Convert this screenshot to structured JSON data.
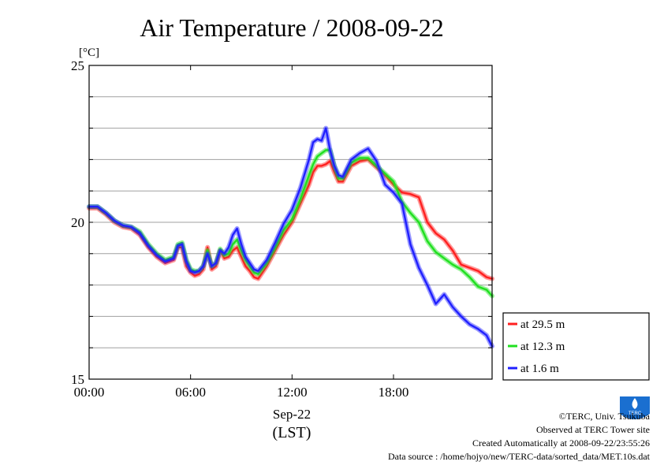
{
  "colors": {
    "red": "#ff2020",
    "green": "#20e020",
    "blue": "#2020ff"
  },
  "credits": {
    "copyright": "©TERC, Univ. Tsukuba",
    "site": "Observed at TERC Tower site",
    "created": "Created Automatically at 2008-09-22/23:55:26",
    "source": "Data source : /home/hojyo/new/TERC-data/sorted_data/MET.10s.dat",
    "logo_text": "TERC"
  },
  "chart_data": {
    "type": "line",
    "title": "Air Temperature / 2008-09-22",
    "ylabel": "[°C]",
    "xlabel_date": "Sep-22",
    "xlabel_tz": "(LST)",
    "ylim": [
      15,
      25
    ],
    "xlim": [
      0,
      23.83
    ],
    "x_ticks": [
      0,
      6,
      12,
      18
    ],
    "x_tick_labels": [
      "00:00",
      "06:00",
      "12:00",
      "18:00"
    ],
    "y_ticks": [
      15,
      20,
      25
    ],
    "y_tick_labels": [
      "15",
      "20",
      "25"
    ],
    "y_grid": [
      16,
      17,
      18,
      19,
      20,
      21,
      22,
      23,
      24
    ],
    "legend_position": "right",
    "x": [
      0,
      0.5,
      1,
      1.5,
      2,
      2.5,
      3,
      3.5,
      4,
      4.5,
      5,
      5.25,
      5.5,
      5.75,
      6,
      6.25,
      6.5,
      6.75,
      7,
      7.25,
      7.5,
      7.75,
      8,
      8.25,
      8.5,
      8.75,
      9,
      9.25,
      9.5,
      9.75,
      10,
      10.5,
      11,
      11.5,
      12,
      12.5,
      13,
      13.25,
      13.5,
      13.75,
      14,
      14.25,
      14.5,
      14.75,
      15,
      15.5,
      16,
      16.5,
      17,
      17.5,
      18,
      18.5,
      19,
      19.5,
      20,
      20.5,
      21,
      21.5,
      22,
      22.5,
      23,
      23.5,
      23.83
    ],
    "series": [
      {
        "name": "at 29.5 m",
        "color": "#ff2020",
        "values": [
          20.45,
          20.45,
          20.25,
          20.0,
          19.85,
          19.8,
          19.6,
          19.2,
          18.9,
          18.7,
          18.8,
          19.2,
          19.2,
          18.6,
          18.4,
          18.3,
          18.35,
          18.5,
          19.2,
          18.5,
          18.6,
          19.1,
          18.85,
          18.9,
          19.1,
          19.2,
          18.9,
          18.6,
          18.45,
          18.25,
          18.2,
          18.6,
          19.1,
          19.6,
          20.0,
          20.6,
          21.2,
          21.6,
          21.8,
          21.8,
          21.85,
          21.95,
          21.6,
          21.3,
          21.3,
          21.8,
          21.95,
          22.0,
          21.75,
          21.5,
          21.2,
          20.95,
          20.9,
          20.8,
          20.0,
          19.65,
          19.45,
          19.1,
          18.65,
          18.55,
          18.45,
          18.25,
          18.2
        ]
      },
      {
        "name": "at 12.3 m",
        "color": "#20e020",
        "values": [
          20.5,
          20.5,
          20.3,
          20.05,
          19.9,
          19.85,
          19.7,
          19.3,
          19.0,
          18.8,
          18.9,
          19.3,
          19.35,
          18.8,
          18.5,
          18.45,
          18.45,
          18.6,
          19.1,
          18.6,
          18.7,
          19.15,
          18.95,
          19.0,
          19.3,
          19.45,
          19.1,
          18.8,
          18.6,
          18.4,
          18.35,
          18.7,
          19.2,
          19.75,
          20.1,
          20.75,
          21.5,
          21.85,
          22.1,
          22.2,
          22.3,
          22.3,
          21.8,
          21.4,
          21.4,
          21.9,
          22.05,
          22.05,
          21.8,
          21.55,
          21.3,
          20.65,
          20.3,
          20.0,
          19.4,
          19.05,
          18.85,
          18.65,
          18.5,
          18.25,
          17.95,
          17.85,
          17.65
        ]
      },
      {
        "name": "at 1.6 m",
        "color": "#2020ff",
        "values": [
          20.5,
          20.5,
          20.3,
          20.05,
          19.9,
          19.85,
          19.65,
          19.25,
          18.95,
          18.75,
          18.85,
          19.25,
          19.3,
          18.75,
          18.45,
          18.4,
          18.45,
          18.6,
          19.0,
          18.6,
          18.7,
          19.1,
          19.0,
          19.2,
          19.6,
          19.8,
          19.3,
          18.9,
          18.7,
          18.5,
          18.45,
          18.8,
          19.35,
          19.95,
          20.4,
          21.1,
          22.0,
          22.55,
          22.65,
          22.6,
          23.0,
          22.3,
          21.8,
          21.5,
          21.45,
          22.0,
          22.2,
          22.35,
          21.95,
          21.2,
          20.95,
          20.6,
          19.3,
          18.55,
          18.0,
          17.4,
          17.7,
          17.3,
          17.0,
          16.75,
          16.6,
          16.4,
          16.05
        ]
      }
    ]
  }
}
